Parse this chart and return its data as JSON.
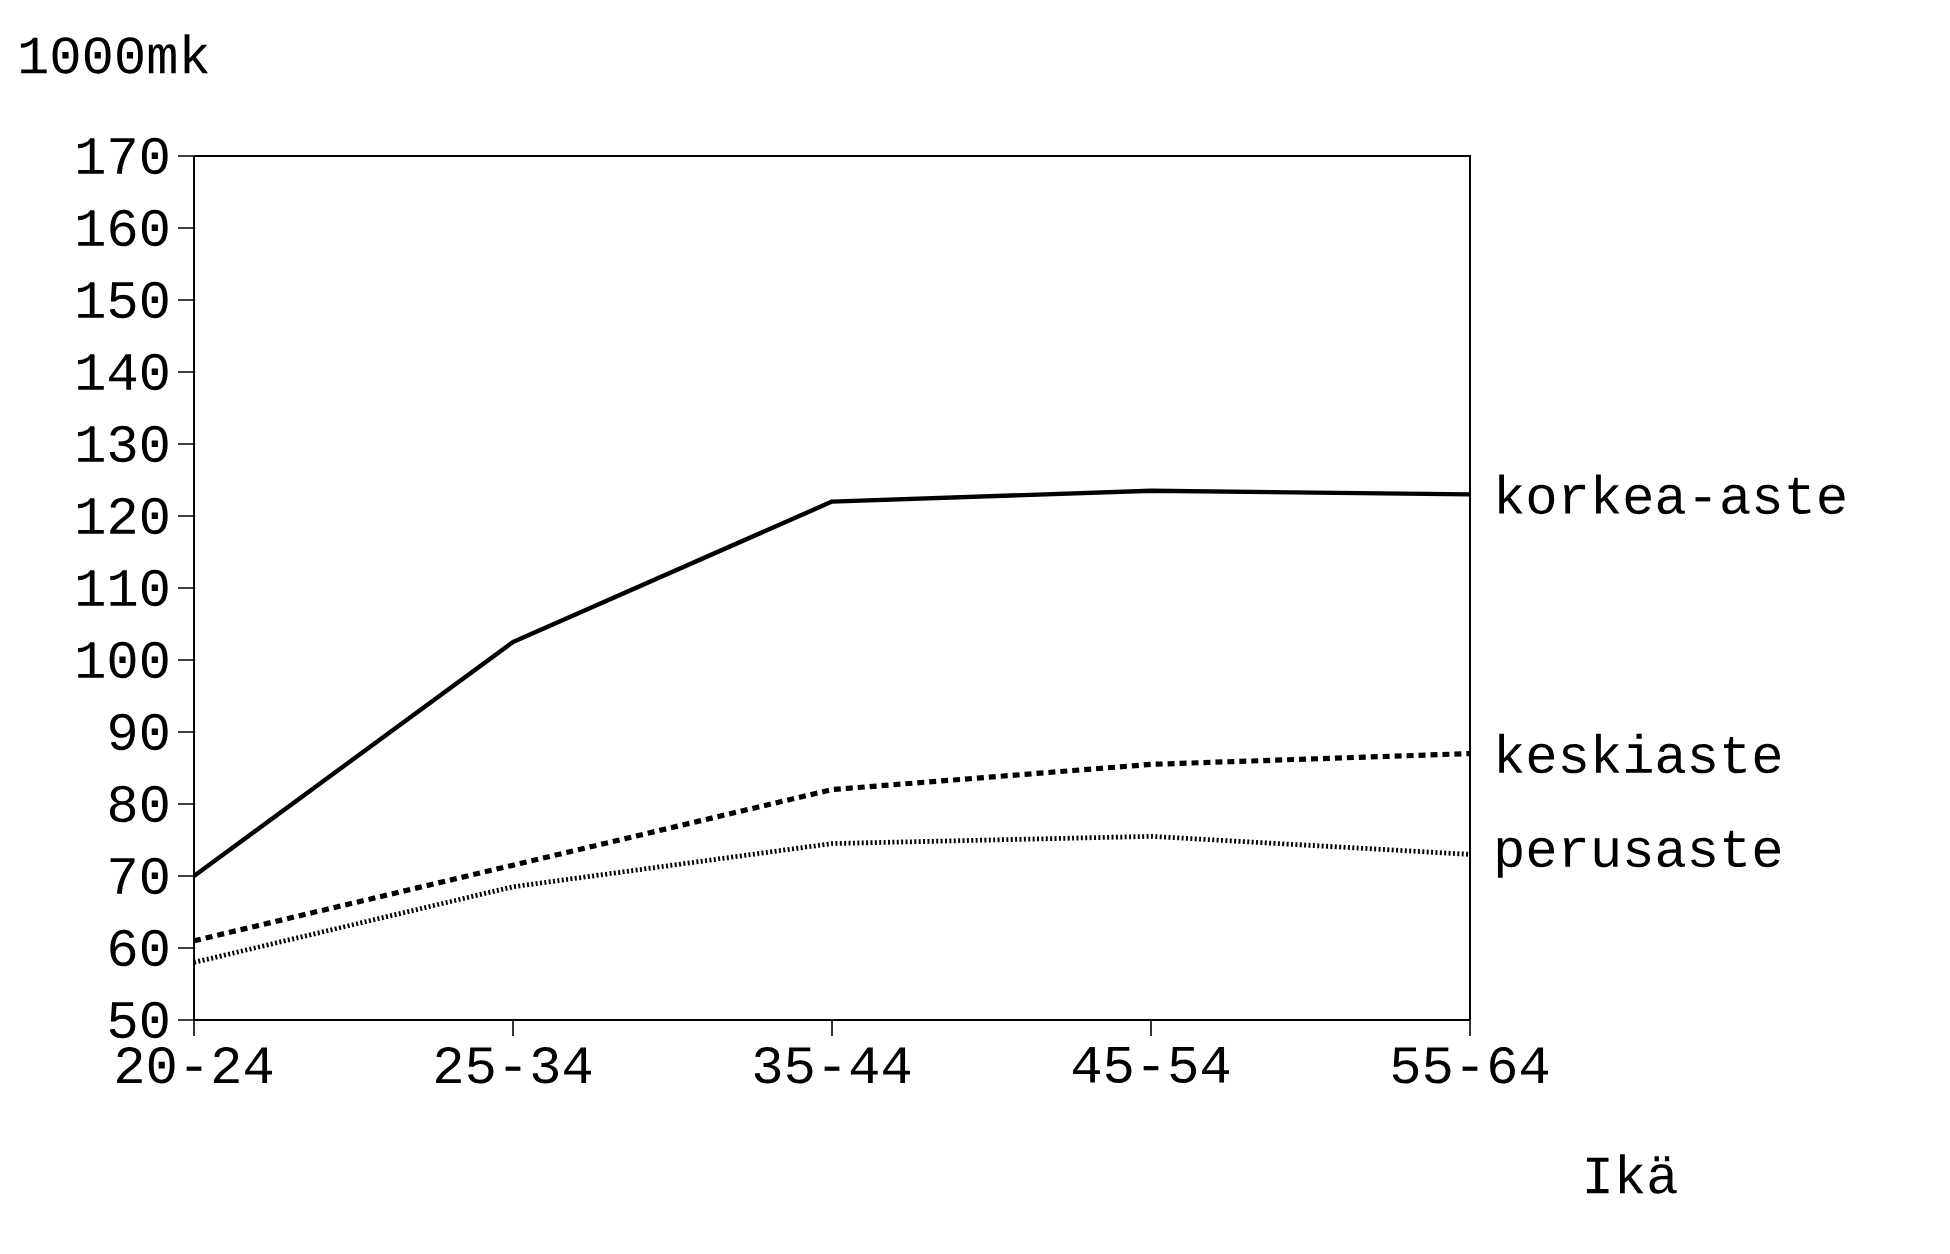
{
  "chart_data": {
    "type": "line",
    "ylabel": "1000mk",
    "xlabel": "Ikä",
    "categories": [
      "20-24",
      "25-34",
      "35-44",
      "45-54",
      "55-64"
    ],
    "series": [
      {
        "name": "korkea-aste",
        "color": "#000000",
        "line_style": "solid",
        "values": [
          70,
          102.5,
          122,
          123.5,
          123
        ]
      },
      {
        "name": "keskiaste",
        "color": "#000000",
        "line_style": "dashed",
        "values": [
          61,
          71.5,
          82,
          85.5,
          87
        ]
      },
      {
        "name": "perusaste",
        "color": "#000000",
        "line_style": "dotted",
        "values": [
          58,
          68.5,
          74.5,
          75.5,
          73
        ]
      }
    ],
    "ylim": [
      50,
      170
    ],
    "yticks": [
      50,
      60,
      70,
      80,
      90,
      100,
      110,
      120,
      130,
      140,
      150,
      160,
      170
    ],
    "grid": false,
    "marker": "none"
  }
}
